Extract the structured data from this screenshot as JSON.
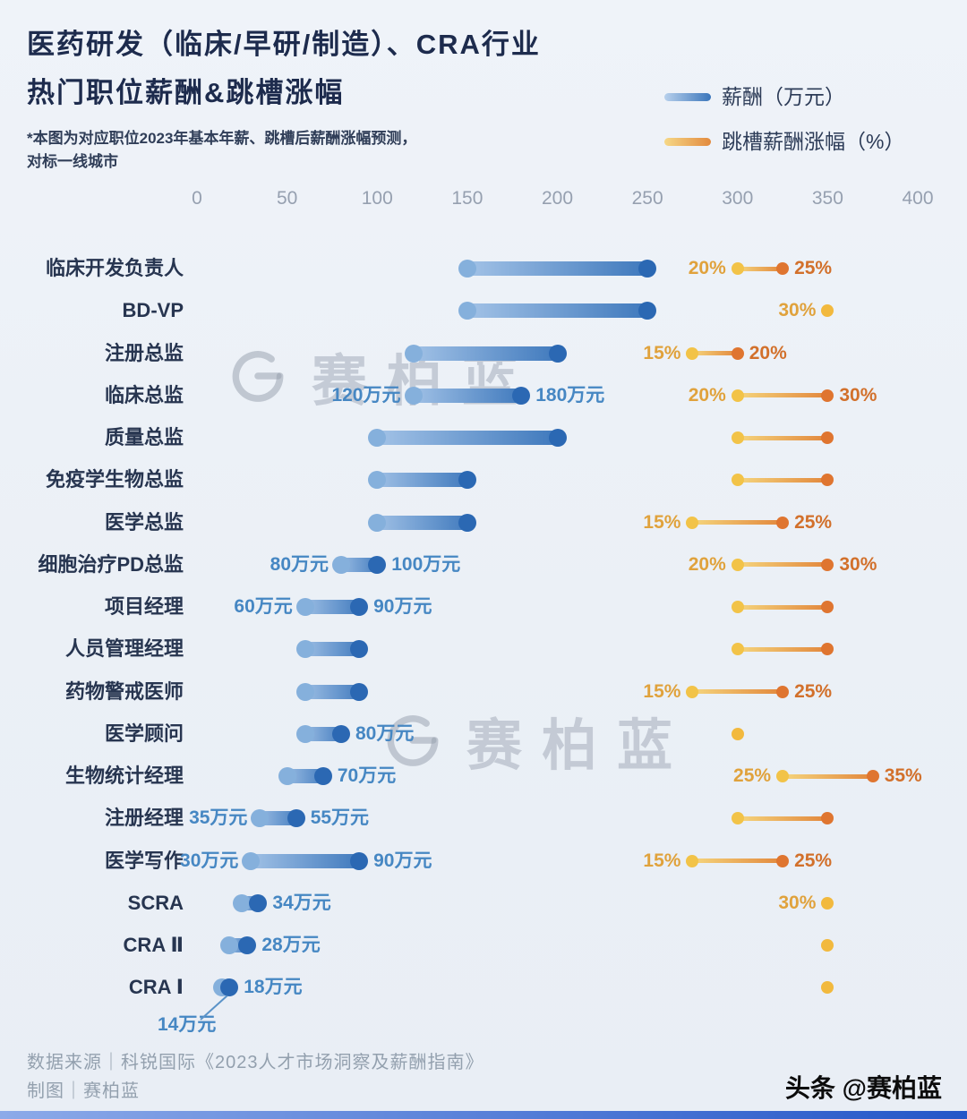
{
  "title": {
    "line1": "医药研发（临床/早研/制造）、CRA行业",
    "line2": "热门职位薪酬&跳槽涨幅"
  },
  "subtitle": {
    "line1": "*本图为对应职位2023年基本年薪、跳槽后薪酬涨幅预测，",
    "line2": "对标一线城市"
  },
  "legend": {
    "salary_label": "薪酬（万元）",
    "jump_label": "跳槽薪酬涨幅（%）"
  },
  "watermark_text": "赛柏蓝",
  "footer": {
    "source": "数据来源｜科锐国际《2023人才市场洞察及薪酬指南》",
    "credit": "制图｜赛柏蓝",
    "badge": "头条 @赛柏蓝"
  },
  "colors": {
    "salary_light": "#a6c5e8",
    "salary_dark": "#2b68b3",
    "jump_light": "#f2c348",
    "jump_dark": "#df7530",
    "salary_value_text": "#4687c3",
    "jump_value_text_left": "#e0a23c",
    "jump_value_text_right": "#d2702b"
  },
  "chart_data": {
    "type": "dumbbell",
    "title": "医药研发（临床/早研/制造）、CRA行业 热门职位薪酬&跳槽涨幅",
    "salary_unit": "万元",
    "jump_unit": "%",
    "x_axis": {
      "min": 0,
      "max": 400,
      "ticks": [
        0,
        50,
        100,
        150,
        200,
        250,
        300,
        350,
        400
      ]
    },
    "legend_position": "top-right",
    "rows": [
      {
        "label": "临床开发负责人",
        "salary": [
          150,
          250
        ],
        "jump": [
          20,
          25
        ],
        "jump_labels": [
          "20%",
          "25%"
        ]
      },
      {
        "label": "BD-VP",
        "salary": [
          150,
          250
        ],
        "jump": [
          30
        ],
        "jump_labels": [
          "30%"
        ]
      },
      {
        "label": "注册总监",
        "salary": [
          120,
          200
        ],
        "jump": [
          15,
          20
        ],
        "jump_labels": [
          "15%",
          "20%"
        ]
      },
      {
        "label": "临床总监",
        "salary": [
          120,
          180
        ],
        "salary_labels": [
          "120万元",
          "180万元"
        ],
        "jump": [
          20,
          30
        ],
        "jump_labels": [
          "20%",
          "30%"
        ]
      },
      {
        "label": "质量总监",
        "salary": [
          100,
          200
        ],
        "jump": [
          20,
          30
        ]
      },
      {
        "label": "免疫学生物总监",
        "salary": [
          100,
          150
        ],
        "jump": [
          20,
          30
        ]
      },
      {
        "label": "医学总监",
        "salary": [
          100,
          150
        ],
        "jump": [
          15,
          25
        ],
        "jump_labels": [
          "15%",
          "25%"
        ]
      },
      {
        "label": "细胞治疗PD总监",
        "salary": [
          80,
          100
        ],
        "salary_labels": [
          "80万元",
          "100万元"
        ],
        "jump": [
          20,
          30
        ],
        "jump_labels": [
          "20%",
          "30%"
        ]
      },
      {
        "label": "项目经理",
        "salary": [
          60,
          90
        ],
        "salary_labels": [
          "60万元",
          "90万元"
        ],
        "jump": [
          20,
          30
        ]
      },
      {
        "label": "人员管理经理",
        "salary": [
          60,
          90
        ],
        "jump": [
          20,
          30
        ]
      },
      {
        "label": "药物警戒医师",
        "salary": [
          60,
          90
        ],
        "jump": [
          15,
          25
        ],
        "jump_labels": [
          "15%",
          "25%"
        ]
      },
      {
        "label": "医学顾问",
        "salary": [
          60,
          80
        ],
        "salary_labels": [
          null,
          "80万元"
        ],
        "jump": [
          20
        ]
      },
      {
        "label": "生物统计经理",
        "salary": [
          50,
          70
        ],
        "salary_labels": [
          null,
          "70万元"
        ],
        "jump": [
          25,
          35
        ],
        "jump_labels": [
          "25%",
          "35%"
        ]
      },
      {
        "label": "注册经理",
        "salary": [
          35,
          55
        ],
        "salary_labels": [
          "35万元",
          "55万元"
        ],
        "jump": [
          20,
          30
        ]
      },
      {
        "label": "医学写作",
        "salary": [
          30,
          90
        ],
        "salary_labels": [
          "30万元",
          "90万元"
        ],
        "jump": [
          15,
          25
        ],
        "jump_labels": [
          "15%",
          "25%"
        ]
      },
      {
        "label": "SCRA",
        "salary": [
          25,
          34
        ],
        "salary_labels": [
          null,
          "34万元"
        ],
        "jump": [
          30
        ],
        "jump_labels": [
          "30%"
        ]
      },
      {
        "label": "CRA Ⅱ",
        "salary": [
          18,
          28
        ],
        "salary_labels": [
          null,
          "28万元"
        ],
        "jump": [
          30
        ]
      },
      {
        "label": "CRA Ⅰ",
        "salary": [
          14,
          18
        ],
        "salary_labels": [
          null,
          "18万元"
        ],
        "jump": [
          30
        ],
        "annotation": {
          "text": "14万元"
        }
      }
    ]
  }
}
